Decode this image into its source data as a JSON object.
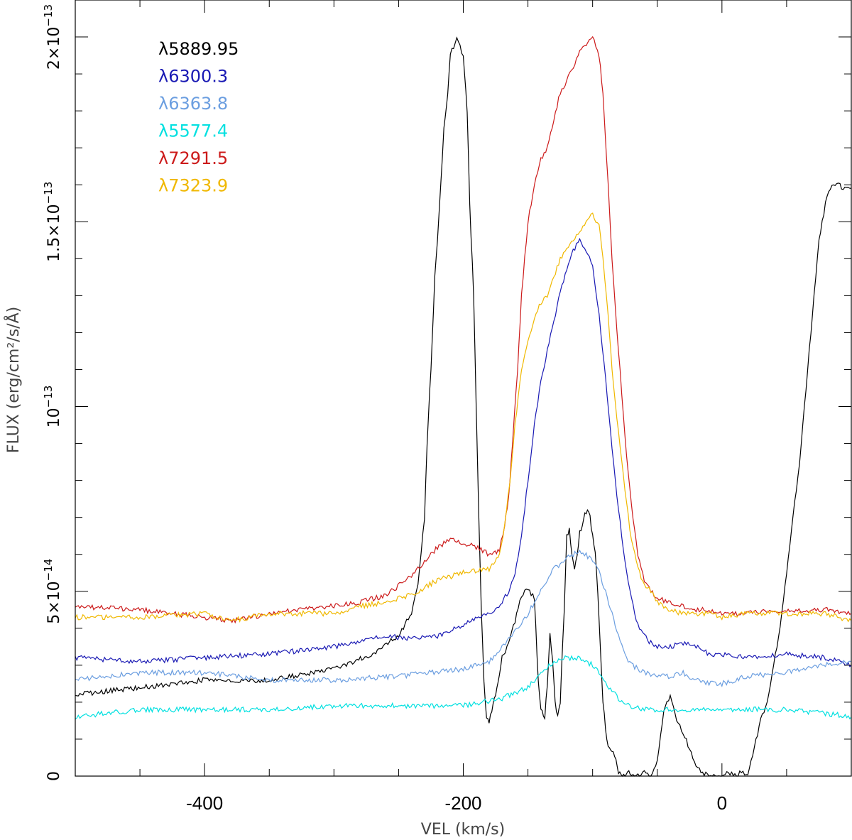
{
  "chart_data": {
    "type": "line",
    "xlabel": "VEL (km/s)",
    "ylabel": "FLUX (erg/cm²/s/Å)",
    "xlim": [
      -500,
      100
    ],
    "ylim": [
      0,
      2.1e-13
    ],
    "x_ticks": [
      -400,
      -200,
      0
    ],
    "x_tick_labels": [
      "-400",
      "-200",
      "0"
    ],
    "y_ticks": [
      0,
      5e-14,
      1e-13,
      1.5e-13,
      2e-13
    ],
    "y_tick_labels": [
      {
        "mantissa": "0",
        "exp": ""
      },
      {
        "mantissa": "5×10",
        "exp": "−14"
      },
      {
        "mantissa": "10",
        "exp": "−13"
      },
      {
        "mantissa": "1.5×10",
        "exp": "−13"
      },
      {
        "mantissa": "2×10",
        "exp": "−13"
      }
    ],
    "grid": false,
    "legend_position": "top-left",
    "series": [
      {
        "name": "λ5889.95",
        "color": "#000000",
        "x": [
          -500,
          -450,
          -400,
          -350,
          -300,
          -270,
          -250,
          -240,
          -235,
          -230,
          -228,
          -225,
          -222,
          -220,
          -215,
          -212,
          -210,
          -205,
          -200,
          -197,
          -195,
          -192,
          -190,
          -188,
          -186,
          -184,
          -182,
          -180,
          -178,
          -175,
          -172,
          -170,
          -165,
          -160,
          -155,
          -150,
          -145,
          -142,
          -140,
          -137,
          -135,
          -133,
          -131,
          -129,
          -127,
          -125,
          -122,
          -120,
          -118,
          -116,
          -114,
          -112,
          -110,
          -108,
          -106,
          -104,
          -102,
          -100,
          -98,
          -96,
          -94,
          -92,
          -90,
          -88,
          -86,
          -84,
          -82,
          -80,
          -78,
          -76,
          -74,
          -72,
          -70,
          -65,
          -60,
          -55,
          -50,
          -45,
          -40,
          -35,
          -30,
          -25,
          -20,
          -15,
          -10,
          -5,
          0,
          5,
          10,
          15,
          20,
          25,
          30,
          35,
          40,
          45,
          50,
          55,
          60,
          65,
          70,
          75,
          80,
          85,
          90,
          95,
          100
        ],
        "y": [
          2.2e-14,
          2.4e-14,
          2.6e-14,
          2.6e-14,
          2.9e-14,
          3.3e-14,
          3.8e-14,
          4.4e-14,
          5.2e-14,
          7e-14,
          9e-14,
          1.1e-13,
          1.35e-13,
          1.45e-13,
          1.75e-13,
          1.85e-13,
          1.95e-13,
          2e-13,
          1.95e-13,
          1.8e-13,
          1.55e-13,
          1.3e-13,
          1e-13,
          7e-14,
          4.5e-14,
          2.5e-14,
          1.6e-14,
          1.5e-14,
          1.8e-14,
          2.2e-14,
          2.8e-14,
          3.2e-14,
          3.6e-14,
          4.2e-14,
          4.9e-14,
          5.1e-14,
          4.8e-14,
          2.6e-14,
          1.8e-14,
          1.6e-14,
          2.5e-14,
          3.8e-14,
          3.2e-14,
          2e-14,
          1.6e-14,
          2e-14,
          4.5e-14,
          6.5e-14,
          6.7e-14,
          6e-14,
          5.6e-14,
          5.9e-14,
          6.6e-14,
          6.8e-14,
          7.1e-14,
          7.2e-14,
          7e-14,
          6.5e-14,
          6e-14,
          5e-14,
          3.5e-14,
          2e-14,
          1.3e-14,
          8e-15,
          7e-15,
          6e-15,
          4e-15,
          1e-15,
          0,
          0,
          0,
          1e-15,
          0,
          0,
          1e-15,
          0,
          4e-15,
          1.8e-14,
          2.2e-14,
          1.5e-14,
          1.2e-14,
          7e-15,
          3e-15,
          1e-15,
          0,
          0,
          0,
          1e-15,
          0,
          1e-15,
          0,
          8e-15,
          1.5e-14,
          2e-14,
          3e-14,
          4e-14,
          5.5e-14,
          7e-14,
          8.5e-14,
          1.05e-13,
          1.25e-13,
          1.45e-13,
          1.55e-13,
          1.6e-13,
          1.6e-13,
          1.59e-13,
          1.59e-13
        ]
      },
      {
        "name": "λ6300.3",
        "color": "#1a1ab4",
        "x": [
          -500,
          -450,
          -400,
          -350,
          -300,
          -260,
          -240,
          -220,
          -200,
          -180,
          -170,
          -165,
          -160,
          -155,
          -150,
          -145,
          -140,
          -135,
          -130,
          -125,
          -120,
          -115,
          -110,
          -105,
          -100,
          -95,
          -90,
          -85,
          -80,
          -75,
          -70,
          -65,
          -60,
          -55,
          -50,
          -40,
          -30,
          -20,
          -10,
          0,
          20,
          50,
          80,
          100
        ],
        "y": [
          3.2e-14,
          3.1e-14,
          3.2e-14,
          3.3e-14,
          3.5e-14,
          3.8e-14,
          3.7e-14,
          3.8e-14,
          4.1e-14,
          4.4e-14,
          4.7e-14,
          5e-14,
          5.5e-14,
          6.5e-14,
          8e-14,
          9.5e-14,
          1.07e-13,
          1.15e-13,
          1.23e-13,
          1.31e-13,
          1.37e-13,
          1.42e-13,
          1.45e-13,
          1.42e-13,
          1.38e-13,
          1.25e-13,
          1.08e-13,
          8.9e-14,
          7.2e-14,
          5.8e-14,
          4.8e-14,
          4.1e-14,
          3.8e-14,
          3.6e-14,
          3.5e-14,
          3.5e-14,
          3.6e-14,
          3.5e-14,
          3.3e-14,
          3.3e-14,
          3.2e-14,
          3.3e-14,
          3.2e-14,
          3e-14
        ]
      },
      {
        "name": "λ6363.8",
        "color": "#6b9ee0",
        "x": [
          -500,
          -450,
          -400,
          -350,
          -300,
          -250,
          -200,
          -180,
          -170,
          -160,
          -150,
          -140,
          -130,
          -120,
          -110,
          -105,
          -100,
          -95,
          -90,
          -85,
          -80,
          -75,
          -70,
          -60,
          -50,
          -40,
          -30,
          -20,
          -10,
          0,
          20,
          50,
          80,
          100
        ],
        "y": [
          2.6e-14,
          2.8e-14,
          2.8e-14,
          2.6e-14,
          2.6e-14,
          2.7e-14,
          2.9e-14,
          3.1e-14,
          3.5e-14,
          3.9e-14,
          4.4e-14,
          5e-14,
          5.6e-14,
          5.9e-14,
          6.1e-14,
          6e-14,
          5.8e-14,
          5.5e-14,
          5e-14,
          4.4e-14,
          3.8e-14,
          3.3e-14,
          3e-14,
          2.8e-14,
          2.7e-14,
          2.7e-14,
          2.8e-14,
          2.6e-14,
          2.5e-14,
          2.5e-14,
          2.7e-14,
          2.8e-14,
          3e-14,
          3.1e-14
        ]
      },
      {
        "name": "λ5577.4",
        "color": "#00e0e0",
        "x": [
          -500,
          -450,
          -400,
          -350,
          -300,
          -250,
          -200,
          -170,
          -150,
          -140,
          -130,
          -120,
          -110,
          -100,
          -95,
          -90,
          -85,
          -80,
          -70,
          -60,
          -40,
          -20,
          0,
          20,
          50,
          80,
          100
        ],
        "y": [
          1.6e-14,
          1.8e-14,
          1.8e-14,
          1.8e-14,
          1.9e-14,
          1.9e-14,
          1.9e-14,
          2.1e-14,
          2.4e-14,
          2.8e-14,
          3.1e-14,
          3.2e-14,
          3.2e-14,
          3e-14,
          2.8e-14,
          2.5e-14,
          2.3e-14,
          2.1e-14,
          1.9e-14,
          1.8e-14,
          1.8e-14,
          1.8e-14,
          1.8e-14,
          1.8e-14,
          1.8e-14,
          1.7e-14,
          1.6e-14
        ]
      },
      {
        "name": "λ7291.5",
        "color": "#cc1a1a",
        "x": [
          -500,
          -450,
          -400,
          -380,
          -350,
          -300,
          -280,
          -260,
          -240,
          -230,
          -220,
          -210,
          -200,
          -190,
          -180,
          -172,
          -168,
          -165,
          -162,
          -158,
          -155,
          -150,
          -145,
          -140,
          -135,
          -130,
          -125,
          -120,
          -115,
          -110,
          -105,
          -100,
          -95,
          -92,
          -88,
          -85,
          -80,
          -75,
          -70,
          -65,
          -60,
          -55,
          -50,
          -40,
          -30,
          -20,
          -10,
          0,
          20,
          50,
          80,
          100
        ],
        "y": [
          4.6e-14,
          4.5e-14,
          4.3e-14,
          4.2e-14,
          4.4e-14,
          4.6e-14,
          4.7e-14,
          4.9e-14,
          5.4e-14,
          5.8e-14,
          6.2e-14,
          6.4e-14,
          6.3e-14,
          6.2e-14,
          6e-14,
          6.1e-14,
          6.8e-14,
          7.5e-14,
          9e-14,
          1.1e-13,
          1.3e-13,
          1.5e-13,
          1.6e-13,
          1.67e-13,
          1.7e-13,
          1.78e-13,
          1.85e-13,
          1.88e-13,
          1.92e-13,
          1.96e-13,
          1.98e-13,
          2e-13,
          1.95e-13,
          1.85e-13,
          1.6e-13,
          1.4e-13,
          1.15e-13,
          9.2e-14,
          7.3e-14,
          6e-14,
          5.3e-14,
          5e-14,
          4.8e-14,
          4.7e-14,
          4.6e-14,
          4.5e-14,
          4.5e-14,
          4.4e-14,
          4.4e-14,
          4.5e-14,
          4.5e-14,
          4.4e-14
        ]
      },
      {
        "name": "λ7323.9",
        "color": "#f0b800",
        "x": [
          -500,
          -450,
          -400,
          -380,
          -350,
          -300,
          -280,
          -260,
          -240,
          -220,
          -200,
          -180,
          -172,
          -168,
          -164,
          -160,
          -155,
          -150,
          -145,
          -140,
          -135,
          -130,
          -125,
          -120,
          -115,
          -110,
          -105,
          -100,
          -95,
          -92,
          -88,
          -85,
          -80,
          -75,
          -70,
          -65,
          -60,
          -55,
          -50,
          -40,
          -30,
          -20,
          -10,
          0,
          20,
          50,
          80,
          100
        ],
        "y": [
          4.3e-14,
          4.3e-14,
          4.4e-14,
          4.2e-14,
          4.4e-14,
          4.4e-14,
          4.6e-14,
          4.7e-14,
          4.9e-14,
          5.3e-14,
          5.5e-14,
          5.6e-14,
          6e-14,
          6.8e-14,
          8e-14,
          9.5e-14,
          1.1e-13,
          1.18e-13,
          1.24e-13,
          1.28e-13,
          1.3e-13,
          1.35e-13,
          1.4e-13,
          1.43e-13,
          1.45e-13,
          1.47e-13,
          1.5e-13,
          1.52e-13,
          1.49e-13,
          1.4e-13,
          1.25e-13,
          1.1e-13,
          9.3e-14,
          7.7e-14,
          6.4e-14,
          5.6e-14,
          5.2e-14,
          5e-14,
          4.7e-14,
          4.5e-14,
          4.4e-14,
          4.4e-14,
          4.4e-14,
          4.3e-14,
          4.4e-14,
          4.4e-14,
          4.4e-14,
          4.2e-14
        ]
      }
    ]
  }
}
